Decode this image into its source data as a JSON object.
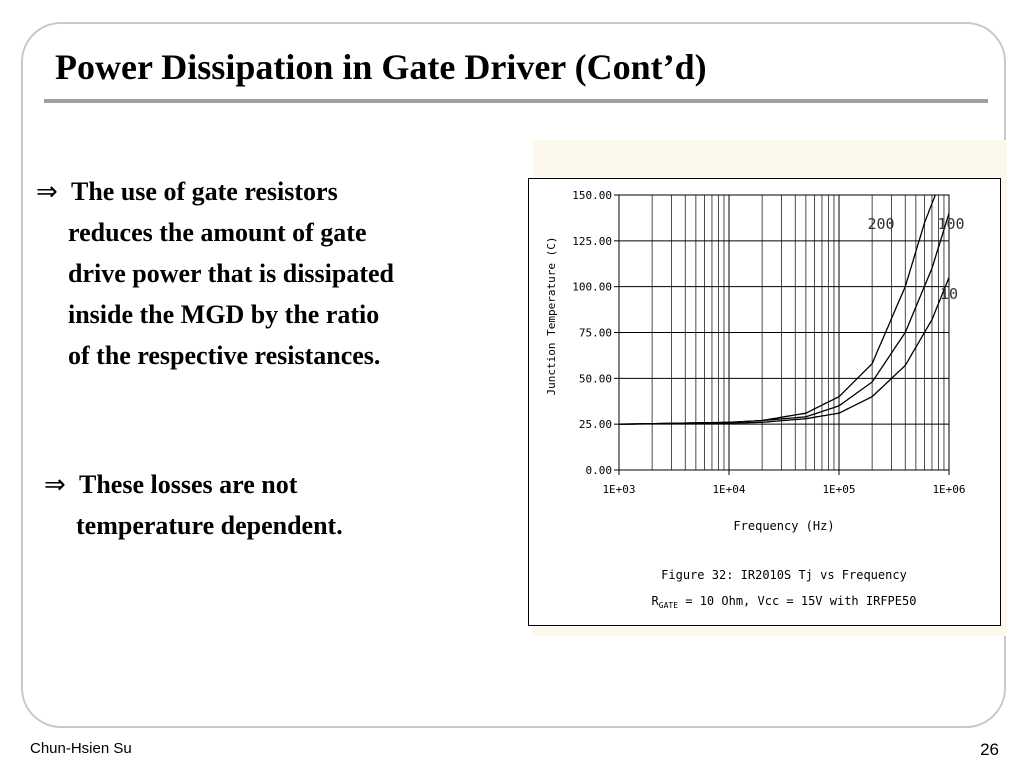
{
  "slide": {
    "title": "Power Dissipation in Gate Driver (Cont’d)",
    "footer_author": "Chun-Hsien Su",
    "page_number": "26"
  },
  "bullets": [
    {
      "symbol": "⇒",
      "lines": [
        "The use of gate resistors",
        "reduces the amount of gate",
        "drive power that is dissipated",
        "inside the MGD by the ratio",
        "of the respective resistances."
      ]
    },
    {
      "symbol": "⇒",
      "lines": [
        "These losses are not",
        "temperature dependent."
      ]
    }
  ],
  "chart_data": {
    "type": "line",
    "xlabel": "Frequency (Hz)",
    "ylabel": "Junction Temperature (C)",
    "x_scale": "log",
    "xlim": [
      1000,
      1000000
    ],
    "ylim": [
      0,
      150
    ],
    "x_ticks": [
      "1E+03",
      "1E+04",
      "1E+05",
      "1E+06"
    ],
    "y_ticks": [
      "0.00",
      "25.00",
      "50.00",
      "75.00",
      "100.00",
      "125.00",
      "150.00"
    ],
    "grid": true,
    "caption_line1": "Figure 32: IR2010S Tj vs Frequency",
    "caption_line2_prefix": "R",
    "caption_line2_sub": "GATE",
    "caption_line2_rest": " = 10 Ohm,  Vcc = 15V with IRFPE50",
    "series": [
      {
        "name": "200",
        "x": [
          1000,
          10000,
          20000,
          50000,
          100000,
          200000,
          400000,
          600000,
          750000
        ],
        "y": [
          25,
          26,
          27,
          31,
          40,
          58,
          100,
          135,
          150
        ]
      },
      {
        "name": "100",
        "x": [
          1000,
          10000,
          20000,
          50000,
          100000,
          200000,
          400000,
          700000,
          1000000
        ],
        "y": [
          25,
          26,
          27,
          29,
          35,
          48,
          75,
          110,
          140
        ]
      },
      {
        "name": "10",
        "x": [
          1000,
          10000,
          20000,
          50000,
          100000,
          200000,
          400000,
          700000,
          1000000
        ],
        "y": [
          25,
          25.5,
          26,
          28,
          31,
          40,
          57,
          82,
          105
        ]
      }
    ],
    "colors": {
      "line": "#000000",
      "grid": "#000000"
    }
  }
}
